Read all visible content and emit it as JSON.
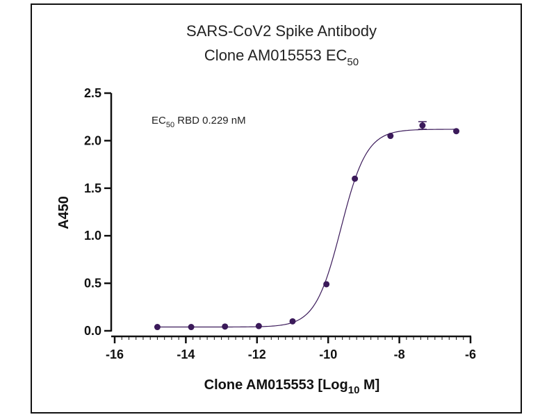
{
  "chart_data": {
    "type": "scatter",
    "title_line1": "SARS-CoV2 Spike Antibody",
    "title_line2_main": "Clone AM015553 EC",
    "title_line2_sub": "50",
    "xlabel_main": "Clone AM015553 [Log",
    "xlabel_sub": "10",
    "xlabel_end": " M]",
    "ylabel": "A450",
    "annotation_main": "EC",
    "annotation_sub": "50",
    "annotation_rest": " RBD 0.229 nM",
    "xlim": [
      -16,
      -6
    ],
    "ylim": [
      0,
      2.5
    ],
    "x_ticks": [
      -16,
      -14,
      -12,
      -10,
      -8,
      -6
    ],
    "y_ticks": [
      0.0,
      0.5,
      1.0,
      1.5,
      2.0,
      2.5
    ],
    "y_tick_labels": [
      "0.0",
      "0.5",
      "1.0",
      "1.5",
      "2.0",
      "2.5"
    ],
    "series": [
      {
        "x": [
          -14.8,
          -13.85,
          -12.9,
          -11.95,
          -11.0,
          -10.05,
          -9.25,
          -8.25,
          -7.35,
          -6.4
        ],
        "y": [
          0.04,
          0.04,
          0.045,
          0.05,
          0.1,
          0.49,
          1.6,
          2.05,
          2.16,
          2.1
        ],
        "error": [
          0,
          0,
          0,
          0,
          0,
          0,
          0,
          0,
          0.04,
          0
        ]
      }
    ],
    "fit": {
      "bottom": 0.04,
      "top": 2.12,
      "log_ec50": -9.64,
      "hill_slope": 1.2
    },
    "colors": {
      "points": "#3b1a5a",
      "axis": "#111111"
    }
  }
}
